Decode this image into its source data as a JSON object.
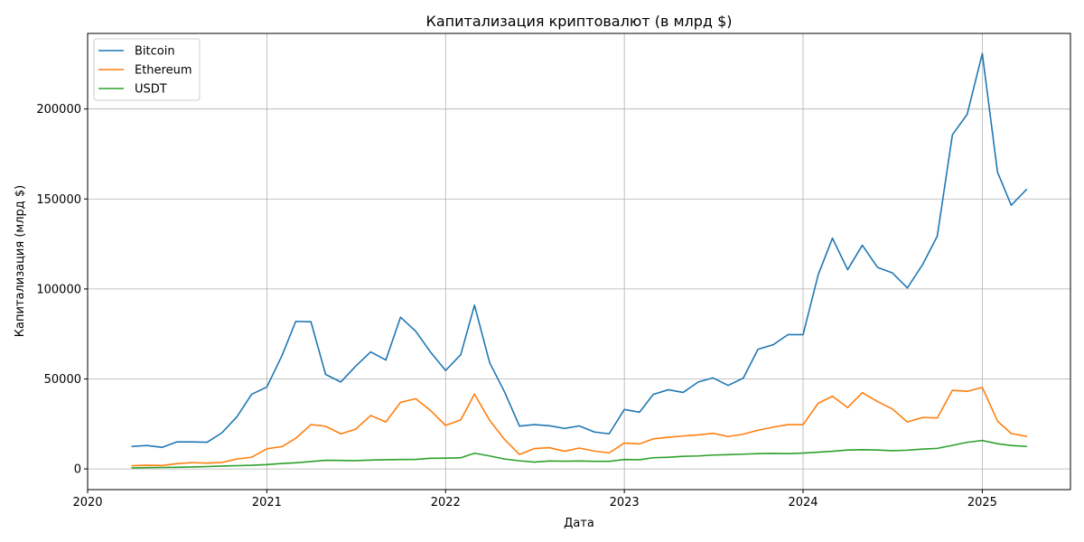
{
  "chart_data": {
    "type": "line",
    "title": "Капитализация криптовалют (в млрд $)",
    "xlabel": "Дата",
    "ylabel": "Капитализация (млрд $)",
    "xlim": [
      "2020-01-01",
      "2025-06-30"
    ],
    "ylim": [
      -11500,
      242000
    ],
    "x_ticks": [
      {
        "value": "2020-01-01",
        "label": "2020"
      },
      {
        "value": "2021-01-01",
        "label": "2021"
      },
      {
        "value": "2022-01-01",
        "label": "2022"
      },
      {
        "value": "2023-01-01",
        "label": "2023"
      },
      {
        "value": "2024-01-01",
        "label": "2024"
      },
      {
        "value": "2025-01-01",
        "label": "2025"
      }
    ],
    "y_ticks": [
      {
        "value": 0,
        "label": "0"
      },
      {
        "value": 50000,
        "label": "50000"
      },
      {
        "value": 100000,
        "label": "100000"
      },
      {
        "value": 150000,
        "label": "150000"
      },
      {
        "value": 200000,
        "label": "200000"
      }
    ],
    "grid": true,
    "legend_position": "top-left",
    "x": [
      "2020-04-01",
      "2020-05-01",
      "2020-06-01",
      "2020-07-01",
      "2020-08-01",
      "2020-09-01",
      "2020-10-01",
      "2020-11-01",
      "2020-12-01",
      "2021-01-01",
      "2021-02-01",
      "2021-03-01",
      "2021-04-01",
      "2021-05-01",
      "2021-06-01",
      "2021-07-01",
      "2021-08-01",
      "2021-09-01",
      "2021-10-01",
      "2021-11-01",
      "2021-12-01",
      "2022-01-01",
      "2022-02-01",
      "2022-03-01",
      "2022-04-01",
      "2022-05-01",
      "2022-06-01",
      "2022-07-01",
      "2022-08-01",
      "2022-09-01",
      "2022-10-01",
      "2022-11-01",
      "2022-12-01",
      "2023-01-01",
      "2023-02-01",
      "2023-03-01",
      "2023-04-01",
      "2023-05-01",
      "2023-06-01",
      "2023-07-01",
      "2023-08-01",
      "2023-09-01",
      "2023-10-01",
      "2023-11-01",
      "2023-12-01",
      "2024-01-01",
      "2024-02-01",
      "2024-03-01",
      "2024-04-01",
      "2024-05-01",
      "2024-06-01",
      "2024-07-01",
      "2024-08-01",
      "2024-09-01",
      "2024-10-01",
      "2024-11-01",
      "2024-12-01",
      "2025-01-01",
      "2025-02-01",
      "2025-03-01",
      "2025-04-01"
    ],
    "series": [
      {
        "name": "Bitcoin",
        "color": "#1f77b4",
        "values": [
          12500,
          13000,
          12000,
          15000,
          15000,
          14800,
          20000,
          29000,
          41500,
          45500,
          63000,
          82000,
          81800,
          52500,
          48300,
          57000,
          65000,
          60500,
          84300,
          76500,
          65000,
          54700,
          63500,
          91000,
          59000,
          43000,
          23800,
          24600,
          24000,
          22500,
          23900,
          20500,
          19500,
          33000,
          31500,
          41400,
          44000,
          42500,
          48300,
          50600,
          46400,
          50500,
          66500,
          69000,
          74600,
          74600,
          108000,
          128200,
          110700,
          124300,
          112000,
          109000,
          100600,
          113500,
          129300,
          185700,
          197000,
          230800,
          165000,
          146500,
          155200
        ]
      },
      {
        "name": "Ethereum",
        "color": "#ff7f0e",
        "values": [
          1800,
          2000,
          1900,
          2900,
          3500,
          3200,
          3600,
          5500,
          6500,
          11200,
          12400,
          17000,
          24600,
          23700,
          19500,
          22000,
          29700,
          26100,
          37000,
          39000,
          32500,
          24200,
          27200,
          41600,
          27000,
          16500,
          8000,
          11300,
          11800,
          9800,
          11600,
          9900,
          8900,
          14400,
          13900,
          16700,
          17600,
          18300,
          18900,
          19800,
          18000,
          19300,
          21500,
          23200,
          24600,
          24600,
          36500,
          40400,
          34100,
          42400,
          37400,
          33400,
          26100,
          28600,
          28300,
          43700,
          43100,
          45300,
          26600,
          19700,
          18100
        ]
      },
      {
        "name": "USDT",
        "color": "#2ca02c",
        "values": [
          500,
          700,
          800,
          900,
          1100,
          1300,
          1600,
          1800,
          2000,
          2400,
          3000,
          3400,
          4100,
          4800,
          4700,
          4600,
          4900,
          5100,
          5200,
          5300,
          5900,
          6000,
          6200,
          8700,
          7200,
          5500,
          4500,
          3800,
          4400,
          4300,
          4400,
          4200,
          4200,
          5200,
          5100,
          6200,
          6500,
          7000,
          7200,
          7700,
          7900,
          8200,
          8500,
          8600,
          8500,
          8800,
          9300,
          9800,
          10500,
          10700,
          10500,
          10100,
          10400,
          11000,
          11400,
          13100,
          14800,
          15800,
          14000,
          13000,
          12500
        ]
      }
    ]
  }
}
